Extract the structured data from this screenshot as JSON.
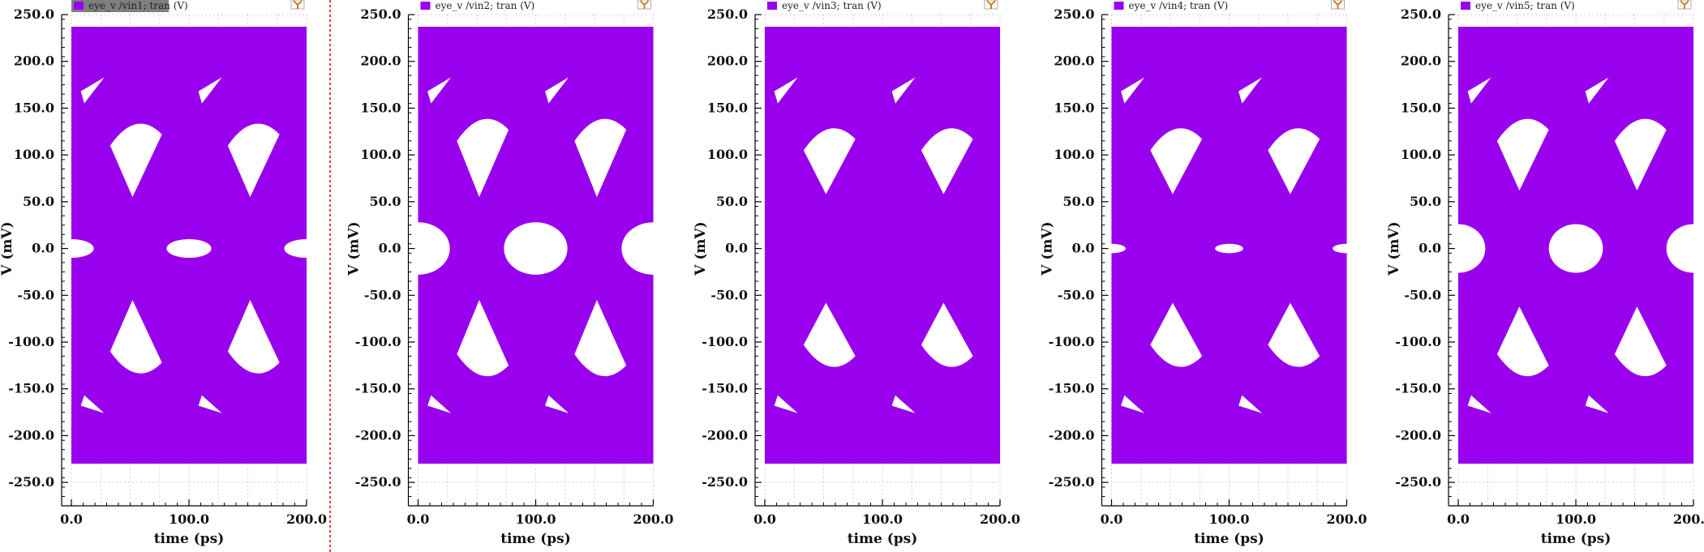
{
  "colors": {
    "eye_fill": "#9900ee",
    "eye_open": "#ffffff",
    "axis": "#000000",
    "grid": "#cfcfcf",
    "legend_bg_selected": "#7f7f7f",
    "legend_text_selected": "#ffffff",
    "marker_icon": "#c88020",
    "separator": "#cc0000"
  },
  "icons": {
    "marker": "y-marker-icon",
    "legend_swatch": "legend-swatch-icon"
  },
  "chart_data": [
    {
      "type": "eye-diagram",
      "legend": "eye_v /vin1; tran (V)",
      "legend_selected": true,
      "xlabel": "time (ps)",
      "ylabel": "V (mV)",
      "xlim": [
        0,
        200
      ],
      "ylim": [
        -275,
        250
      ],
      "x_ticks": [
        "0.0",
        "100.0",
        "200.0"
      ],
      "y_ticks": [
        "250.0",
        "200.0",
        "150.0",
        "100.0",
        "50.0",
        "0.0",
        "-50.0",
        "-100.0",
        "-150.0",
        "-200.0",
        "-250.0"
      ],
      "signal_range_mV": [
        -230,
        237
      ],
      "grid": true,
      "eye_opening": {
        "center_ps": 100,
        "height_mV": 20,
        "width_ps": 38,
        "upper_peak_mV": 140,
        "upper_base_mV": 55,
        "lower_peak_mV": -140,
        "lower_base_mV": -55
      }
    },
    {
      "type": "eye-diagram",
      "legend": "eye_v /vin2; tran (V)",
      "legend_selected": false,
      "xlabel": "time (ps)",
      "ylabel": "V (mV)",
      "xlim": [
        0,
        200
      ],
      "ylim": [
        -275,
        250
      ],
      "x_ticks": [
        "0.0",
        "100.0",
        "200.0"
      ],
      "y_ticks": [
        "250.0",
        "200.0",
        "150.0",
        "100.0",
        "50.0",
        "0.0",
        "-50.0",
        "-100.0",
        "-150.0",
        "-200.0",
        "-250.0"
      ],
      "signal_range_mV": [
        -230,
        237
      ],
      "grid": true,
      "eye_opening": {
        "center_ps": 100,
        "height_mV": 56,
        "width_ps": 54,
        "upper_peak_mV": 145,
        "upper_base_mV": 55,
        "lower_peak_mV": -143,
        "lower_base_mV": -55
      }
    },
    {
      "type": "eye-diagram",
      "legend": "eye_v /vin3; tran (V)",
      "legend_selected": false,
      "xlabel": "time (ps)",
      "ylabel": "V (mV)",
      "xlim": [
        0,
        200
      ],
      "ylim": [
        -275,
        250
      ],
      "x_ticks": [
        "0.0",
        "100.0",
        "200.0"
      ],
      "y_ticks": [
        "250.0",
        "200.0",
        "150.0",
        "100.0",
        "50.0",
        "0.0",
        "-50.0",
        "-100.0",
        "-150.0",
        "-200.0",
        "-250.0"
      ],
      "signal_range_mV": [
        -230,
        237
      ],
      "grid": true,
      "eye_opening": {
        "center_ps": 100,
        "height_mV": 0,
        "width_ps": 0,
        "upper_peak_mV": 135,
        "upper_base_mV": 58,
        "lower_peak_mV": -133,
        "lower_base_mV": -58
      }
    },
    {
      "type": "eye-diagram",
      "legend": "eye_v /vin4; tran (V)",
      "legend_selected": false,
      "xlabel": "time (ps)",
      "ylabel": "V (mV)",
      "xlim": [
        0,
        200
      ],
      "ylim": [
        -275,
        250
      ],
      "x_ticks": [
        "0.0",
        "100.0",
        "200.0"
      ],
      "y_ticks": [
        "250.0",
        "200.0",
        "150.0",
        "100.0",
        "50.0",
        "0.0",
        "-50.0",
        "-100.0",
        "-150.0",
        "-200.0",
        "-250.0"
      ],
      "signal_range_mV": [
        -230,
        237
      ],
      "grid": true,
      "eye_opening": {
        "center_ps": 100,
        "height_mV": 10,
        "width_ps": 24,
        "upper_peak_mV": 135,
        "upper_base_mV": 58,
        "lower_peak_mV": -133,
        "lower_base_mV": -58
      }
    },
    {
      "type": "eye-diagram",
      "legend": "eye_v /vin5; tran (V)",
      "legend_selected": false,
      "xlabel": "time (ps)",
      "ylabel": "V (mV)",
      "xlim": [
        0,
        200
      ],
      "ylim": [
        -275,
        250
      ],
      "x_ticks": [
        "0.0",
        "100.0",
        "200.0"
      ],
      "y_ticks": [
        "250.0",
        "200.0",
        "150.0",
        "100.0",
        "50.0",
        "0.0",
        "-50.0",
        "-100.0",
        "-150.0",
        "-200.0",
        "-250.0"
      ],
      "signal_range_mV": [
        -230,
        237
      ],
      "grid": true,
      "eye_opening": {
        "center_ps": 100,
        "height_mV": 52,
        "width_ps": 46,
        "upper_peak_mV": 145,
        "upper_base_mV": 62,
        "lower_peak_mV": -143,
        "lower_base_mV": -62
      }
    }
  ]
}
